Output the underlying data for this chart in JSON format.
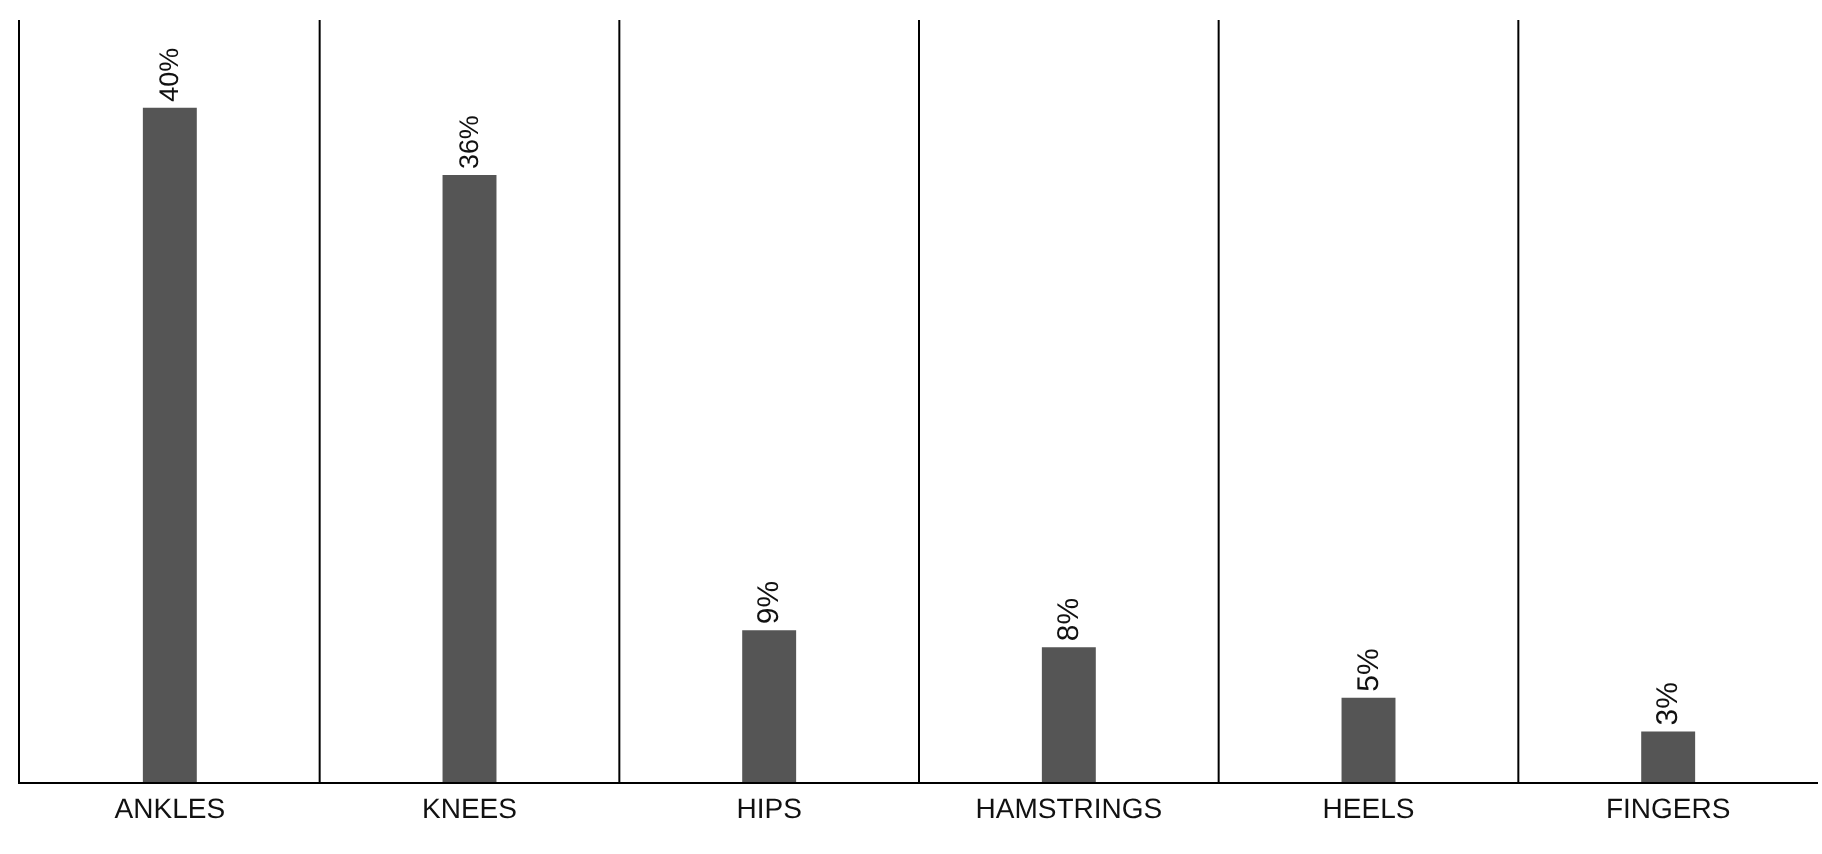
{
  "chart_data": {
    "type": "bar",
    "categories": [
      "ANKLES",
      "KNEES",
      "HIPS",
      "HAMSTRINGS",
      "HEELS",
      "FINGERS"
    ],
    "values": [
      40,
      36,
      9,
      8,
      5,
      3
    ],
    "value_labels": [
      "40%",
      "36%",
      "9%",
      "8%",
      "5%",
      "3%"
    ],
    "color": "#555555",
    "grid": "x",
    "legend": false,
    "tick_labels": "x"
  }
}
